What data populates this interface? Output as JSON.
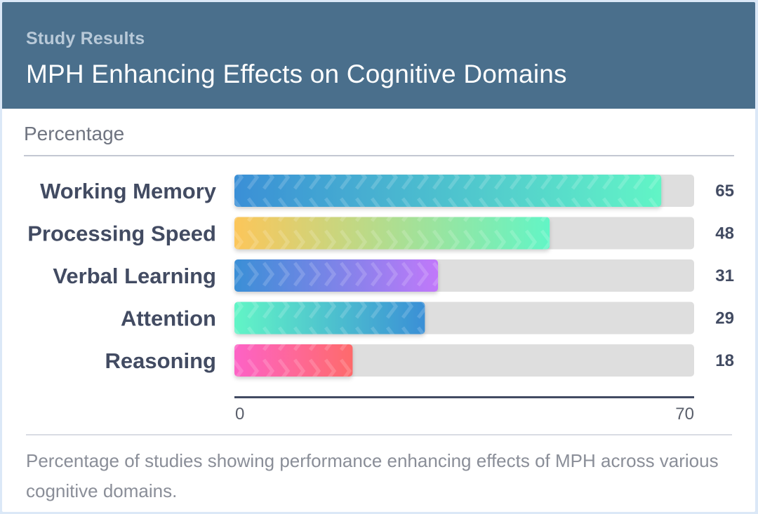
{
  "header": {
    "eyebrow": "Study Results",
    "title": "MPH Enhancing Effects on Cognitive Domains"
  },
  "caption": "Percentage of studies showing performance enhancing effects of MPH across various cognitive domains.",
  "chart_data": {
    "type": "bar",
    "orientation": "horizontal",
    "title": "MPH Enhancing Effects on Cognitive Domains",
    "xlabel": "Percentage",
    "ylabel": "",
    "xlim": [
      0,
      70
    ],
    "x_ticks": [
      "0",
      "70"
    ],
    "grid": false,
    "categories": [
      "Working Memory",
      "Processing Speed",
      "Verbal Learning",
      "Attention",
      "Reasoning"
    ],
    "values": [
      65,
      48,
      31,
      29,
      18
    ],
    "value_labels": [
      "65",
      "48",
      "31",
      "29",
      "18"
    ],
    "bar_gradients": [
      [
        "#3a8fd6",
        "#62f5c6"
      ],
      [
        "#fcc65a",
        "#62f5c6"
      ],
      [
        "#3a8fd6",
        "#c178fa"
      ],
      [
        "#62f5c6",
        "#3a8fd6"
      ],
      [
        "#fd63c6",
        "#fe6b6b"
      ]
    ],
    "track_color": "#dedede",
    "axis_color": "#424b62"
  }
}
